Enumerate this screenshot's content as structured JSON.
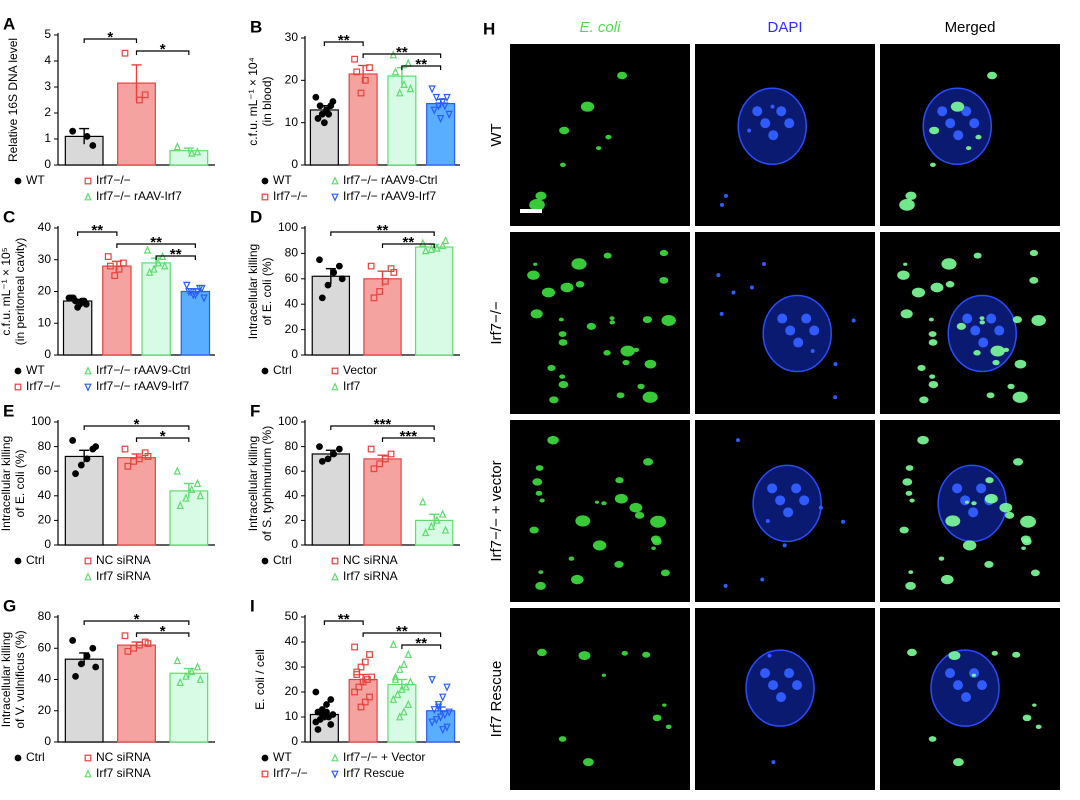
{
  "chart_data": [
    {
      "type": "bar",
      "panel": "A",
      "ylabel": [
        "Relative 16S DNA level"
      ],
      "categories": [
        "WT",
        "Irf7−/−",
        "Irf7−/− rAAV-Irf7"
      ],
      "values": [
        1.1,
        3.15,
        0.55
      ],
      "errors": [
        0.3,
        0.7,
        0.1
      ],
      "points": [
        [
          1.3,
          0.75,
          1.1
        ],
        [
          4.3,
          2.7,
          2.5
        ],
        [
          0.7,
          0.5,
          0.45
        ]
      ],
      "colors": [
        "#d9d9d9",
        "#f4a3a0",
        "#d8fbe6"
      ],
      "edge_colors": [
        "#000000",
        "#e8413c",
        "#5fdc6e"
      ],
      "markers": [
        "circle",
        "square",
        "triangle-up"
      ],
      "ylim": [
        0,
        5
      ],
      "yticks": [
        0,
        1,
        2,
        3,
        4,
        5
      ],
      "brackets": [
        {
          "between": [
            "WT",
            "Irf7−/−"
          ],
          "label": "*"
        },
        {
          "between": [
            "Irf7−/−",
            "Irf7−/− rAAV-Irf7"
          ],
          "label": "*"
        }
      ]
    },
    {
      "type": "bar",
      "panel": "B",
      "ylabel": [
        "c.f.u. mL⁻¹ × 10⁴",
        "(in blood)"
      ],
      "categories": [
        "WT",
        "Irf7−/−",
        "Irf7−/− rAAV9-Ctrl",
        "Irf7−/− rAAV9-Irf7"
      ],
      "values": [
        13,
        21.5,
        21,
        14.5
      ],
      "errors": [
        1,
        2,
        2,
        1
      ],
      "points": [
        [
          16,
          14,
          13,
          12,
          11,
          15,
          12,
          10,
          14
        ],
        [
          25,
          23,
          20,
          17,
          22
        ],
        [
          26,
          24,
          19,
          17,
          22,
          18
        ],
        [
          18,
          16,
          15,
          14,
          13,
          12,
          14,
          11,
          16
        ]
      ],
      "colors": [
        "#d9d9d9",
        "#f4a3a0",
        "#d8fbe6",
        "#5aaeff"
      ],
      "edge_colors": [
        "#000000",
        "#e8413c",
        "#5fdc6e",
        "#2a5cff"
      ],
      "markers": [
        "circle",
        "square",
        "triangle-up",
        "triangle-down"
      ],
      "ylim": [
        0,
        30
      ],
      "yticks": [
        0,
        10,
        20,
        30
      ],
      "brackets": [
        {
          "between": [
            "WT",
            "Irf7−/−"
          ],
          "label": "**"
        },
        {
          "between": [
            "Irf7−/−",
            "Irf7−/− rAAV9-Irf7"
          ],
          "label": "**"
        },
        {
          "between": [
            "Irf7−/− rAAV9-Ctrl",
            "Irf7−/− rAAV9-Irf7"
          ],
          "label": "**"
        }
      ]
    },
    {
      "type": "bar",
      "panel": "C",
      "ylabel": [
        "c.f.u. mL⁻¹ × 10⁵",
        "(in peritoneal cavity)"
      ],
      "categories": [
        "WT",
        "Irf7−/−",
        "Irf7−/− rAAV9-Ctrl",
        "Irf7−/− rAAV9-Irf7"
      ],
      "values": [
        17,
        28,
        29,
        20
      ],
      "errors": [
        0.5,
        1.5,
        1.5,
        0.8
      ],
      "points": [
        [
          18,
          17,
          16,
          17,
          18,
          16,
          17,
          15,
          18
        ],
        [
          31,
          29,
          27,
          25,
          28
        ],
        [
          33,
          31,
          29,
          27,
          26,
          28
        ],
        [
          22,
          21,
          20,
          19,
          20,
          18,
          21,
          19,
          20
        ]
      ],
      "colors": [
        "#d9d9d9",
        "#f4a3a0",
        "#d8fbe6",
        "#5aaeff"
      ],
      "edge_colors": [
        "#000000",
        "#e8413c",
        "#5fdc6e",
        "#2a5cff"
      ],
      "markers": [
        "circle",
        "square",
        "triangle-up",
        "triangle-down"
      ],
      "ylim": [
        0,
        40
      ],
      "yticks": [
        0,
        10,
        20,
        30,
        40
      ],
      "brackets": [
        {
          "between": [
            "WT",
            "Irf7−/−"
          ],
          "label": "**"
        },
        {
          "between": [
            "Irf7−/−",
            "Irf7−/− rAAV9-Irf7"
          ],
          "label": "**"
        },
        {
          "between": [
            "Irf7−/− rAAV9-Ctrl",
            "Irf7−/− rAAV9-Irf7"
          ],
          "label": "**"
        }
      ]
    },
    {
      "type": "bar",
      "panel": "D",
      "ylabel": [
        "Intracellular killing",
        "of E. coli (%)"
      ],
      "categories": [
        "Ctrl",
        "Vector",
        "Irf7"
      ],
      "values": [
        62,
        60,
        85
      ],
      "errors": [
        6,
        6,
        2
      ],
      "points": [
        [
          75,
          70,
          65,
          55,
          45,
          60
        ],
        [
          70,
          68,
          58,
          50,
          45,
          65
        ],
        [
          88,
          86,
          84,
          83,
          82,
          90
        ]
      ],
      "colors": [
        "#d9d9d9",
        "#f4a3a0",
        "#d8fbe6"
      ],
      "edge_colors": [
        "#000000",
        "#e8413c",
        "#5fdc6e"
      ],
      "markers": [
        "circle",
        "square",
        "triangle-up"
      ],
      "ylim": [
        0,
        100
      ],
      "yticks": [
        0,
        20,
        40,
        60,
        80,
        100
      ],
      "brackets": [
        {
          "between": [
            "Ctrl",
            "Irf7"
          ],
          "label": "**"
        },
        {
          "between": [
            "Vector",
            "Irf7"
          ],
          "label": "**"
        }
      ]
    },
    {
      "type": "bar",
      "panel": "E",
      "ylabel": [
        "Intracellular killing",
        "of E. coli (%)"
      ],
      "categories": [
        "Ctrl",
        "NC siRNA",
        "Irf7 siRNA"
      ],
      "values": [
        72,
        71,
        44
      ],
      "errors": [
        5,
        3,
        6
      ],
      "points": [
        [
          85,
          78,
          70,
          65,
          58,
          80
        ],
        [
          78,
          75,
          70,
          68,
          64,
          72
        ],
        [
          60,
          50,
          45,
          38,
          32,
          40
        ]
      ],
      "colors": [
        "#d9d9d9",
        "#f4a3a0",
        "#d8fbe6"
      ],
      "edge_colors": [
        "#000000",
        "#e8413c",
        "#5fdc6e"
      ],
      "markers": [
        "circle",
        "square",
        "triangle-up"
      ],
      "ylim": [
        0,
        100
      ],
      "yticks": [
        0,
        20,
        40,
        60,
        80,
        100
      ],
      "brackets": [
        {
          "between": [
            "Ctrl",
            "Irf7 siRNA"
          ],
          "label": "*"
        },
        {
          "between": [
            "NC siRNA",
            "Irf7 siRNA"
          ],
          "label": "*"
        }
      ]
    },
    {
      "type": "bar",
      "panel": "F",
      "ylabel": [
        "Intracellular killing",
        "of S. typhimurium (%)"
      ],
      "categories": [
        "Ctrl",
        "NC siRNA",
        "Irf7 siRNA"
      ],
      "values": [
        74,
        70,
        20
      ],
      "errors": [
        3,
        3,
        5
      ],
      "points": [
        [
          80,
          78,
          74,
          70,
          68
        ],
        [
          78,
          74,
          70,
          66,
          62
        ],
        [
          35,
          25,
          20,
          15,
          10,
          12
        ]
      ],
      "colors": [
        "#d9d9d9",
        "#f4a3a0",
        "#d8fbe6"
      ],
      "edge_colors": [
        "#000000",
        "#e8413c",
        "#5fdc6e"
      ],
      "markers": [
        "circle",
        "square",
        "triangle-up"
      ],
      "ylim": [
        0,
        100
      ],
      "yticks": [
        0,
        20,
        40,
        60,
        80,
        100
      ],
      "brackets": [
        {
          "between": [
            "Ctrl",
            "Irf7 siRNA"
          ],
          "label": "***"
        },
        {
          "between": [
            "NC siRNA",
            "Irf7 siRNA"
          ],
          "label": "***"
        }
      ]
    },
    {
      "type": "bar",
      "panel": "G",
      "ylabel": [
        "Intracellular killing",
        "of V. vulnificus (%)"
      ],
      "categories": [
        "Ctrl",
        "NC siRNA",
        "Irf7 siRNA"
      ],
      "values": [
        53,
        62,
        44
      ],
      "errors": [
        4,
        2,
        3
      ],
      "points": [
        [
          65,
          60,
          55,
          50,
          42,
          48
        ],
        [
          68,
          64,
          62,
          60,
          58,
          63
        ],
        [
          52,
          48,
          45,
          42,
          38,
          40
        ]
      ],
      "colors": [
        "#d9d9d9",
        "#f4a3a0",
        "#d8fbe6"
      ],
      "edge_colors": [
        "#000000",
        "#e8413c",
        "#5fdc6e"
      ],
      "markers": [
        "circle",
        "square",
        "triangle-up"
      ],
      "ylim": [
        0,
        80
      ],
      "yticks": [
        0,
        20,
        40,
        60,
        80
      ],
      "brackets": [
        {
          "between": [
            "Ctrl",
            "Irf7 siRNA"
          ],
          "label": "*"
        },
        {
          "between": [
            "NC siRNA",
            "Irf7 siRNA"
          ],
          "label": "*"
        }
      ]
    },
    {
      "type": "bar",
      "panel": "I",
      "ylabel": [
        "E. coli / cell"
      ],
      "categories": [
        "WT",
        "Irf7−/−",
        "Irf7−/− + Vector",
        "Irf7 Rescue"
      ],
      "values": [
        11,
        25,
        23,
        12.5
      ],
      "errors": [
        1.5,
        2,
        2,
        1.5
      ],
      "points": [
        [
          20,
          17,
          15,
          13,
          12,
          11,
          10,
          10,
          9,
          8,
          7,
          12,
          11,
          5
        ],
        [
          38,
          35,
          32,
          30,
          28,
          26,
          25,
          24,
          22,
          20,
          18,
          16,
          14,
          27
        ],
        [
          39,
          35,
          31,
          29,
          26,
          24,
          22,
          21,
          19,
          17,
          15,
          12,
          10,
          25
        ],
        [
          25,
          22,
          18,
          15,
          13,
          12,
          11,
          10,
          9,
          8,
          6,
          5,
          14
        ]
      ],
      "colors": [
        "#d9d9d9",
        "#f4a3a0",
        "#d8fbe6",
        "#5aaeff"
      ],
      "edge_colors": [
        "#000000",
        "#e8413c",
        "#5fdc6e",
        "#2a5cff"
      ],
      "markers": [
        "circle",
        "square",
        "triangle-up",
        "triangle-down"
      ],
      "ylim": [
        0,
        50
      ],
      "yticks": [
        0,
        10,
        20,
        30,
        40,
        50
      ],
      "brackets": [
        {
          "between": [
            "WT",
            "Irf7−/−"
          ],
          "label": "**"
        },
        {
          "between": [
            "Irf7−/−",
            "Irf7 Rescue"
          ],
          "label": "**"
        },
        {
          "between": [
            "Irf7−/− + Vector",
            "Irf7 Rescue"
          ],
          "label": "**"
        }
      ]
    }
  ],
  "panel_h": {
    "label": "H",
    "columns": [
      {
        "text": "E. coli",
        "color": "#4be04b"
      },
      {
        "text": "DAPI",
        "color": "#2b2bff"
      },
      {
        "text": "Merged",
        "color": "#000000"
      }
    ],
    "rows": [
      "WT",
      "Irf7−/−",
      "Irf7−/− + vector",
      "Irf7 Rescue"
    ]
  }
}
